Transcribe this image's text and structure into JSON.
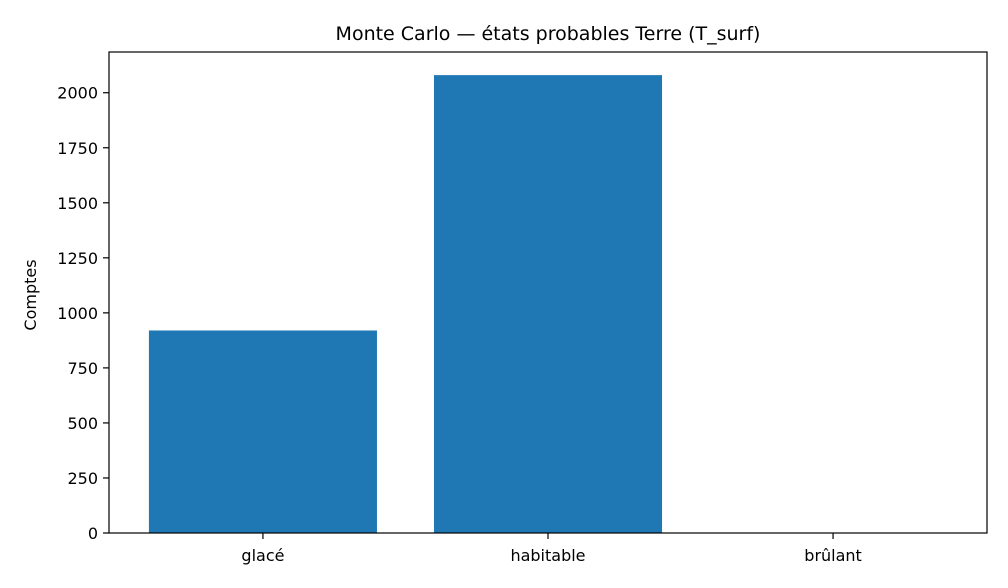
{
  "chart_data": {
    "type": "bar",
    "title": "Monte Carlo — états probables Terre (T_surf)",
    "xlabel": "",
    "ylabel": "Comptes",
    "categories": [
      "glacé",
      "habitable",
      "brûlant"
    ],
    "values": [
      920,
      2080,
      0
    ],
    "ylim": [
      0,
      2185
    ],
    "yticks": [
      0,
      250,
      500,
      750,
      1000,
      1250,
      1500,
      1750,
      2000
    ],
    "grid": false,
    "legend": "none",
    "bar_color": "#1f77b4"
  }
}
